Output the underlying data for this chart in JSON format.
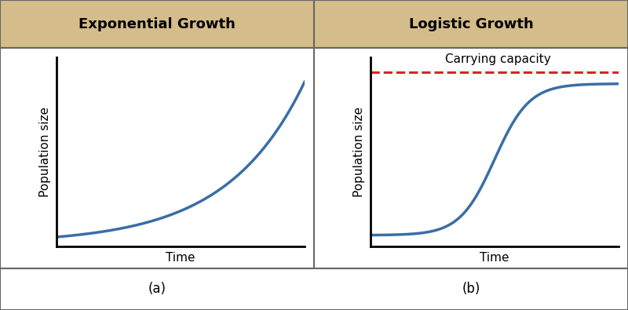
{
  "title_a": "Exponential Growth",
  "title_b": "Logistic Growth",
  "xlabel": "Time",
  "ylabel": "Population size",
  "carrying_capacity_label": "Carrying capacity",
  "header_bg_color": "#d4bc8b",
  "header_text_color": "#000000",
  "curve_color": "#3a6ea5",
  "dashed_line_color": "#dd2222",
  "background_color": "#ffffff",
  "border_color": "#666666",
  "label_a": "(a)",
  "label_b": "(b)",
  "curve_linewidth": 2.5,
  "dashed_linewidth": 2.2,
  "title_fontsize": 13,
  "axis_label_fontsize": 11,
  "sublabel_fontsize": 12,
  "carrying_cap_fontsize": 11
}
